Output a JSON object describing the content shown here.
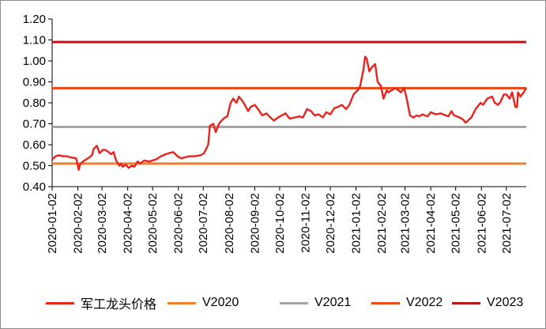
{
  "chart_data": {
    "type": "line",
    "title": "",
    "xlabel": "",
    "ylabel": "",
    "ylim": [
      0.4,
      1.2
    ],
    "y_ticks": [
      "0.40",
      "0.50",
      "0.60",
      "0.70",
      "0.80",
      "0.90",
      "1.00",
      "1.10",
      "1.20"
    ],
    "x_ticks": [
      "2020-01-02",
      "2020-02-02",
      "2020-03-02",
      "2020-04-02",
      "2020-05-02",
      "2020-06-02",
      "2020-07-02",
      "2020-08-02",
      "2020-09-02",
      "2020-10-02",
      "2020-11-02",
      "2020-12-02",
      "2021-01-02",
      "2021-02-02",
      "2021-03-02",
      "2021-04-02",
      "2021-05-02",
      "2021-06-02",
      "2021-07-02"
    ],
    "x_range": [
      "2020-01-02",
      "2021-07-26"
    ],
    "grid": false,
    "legend_position": "bottom",
    "series": [
      {
        "name": "军工龙头价格",
        "color": "#e8231e",
        "points": [
          [
            "2020-01-02",
            0.53
          ],
          [
            "2020-01-06",
            0.545
          ],
          [
            "2020-01-10",
            0.55
          ],
          [
            "2020-01-15",
            0.545
          ],
          [
            "2020-01-20",
            0.545
          ],
          [
            "2020-01-24",
            0.54
          ],
          [
            "2020-01-31",
            0.535
          ],
          [
            "2020-02-03",
            0.48
          ],
          [
            "2020-02-05",
            0.51
          ],
          [
            "2020-02-10",
            0.525
          ],
          [
            "2020-02-14",
            0.535
          ],
          [
            "2020-02-19",
            0.55
          ],
          [
            "2020-02-21",
            0.58
          ],
          [
            "2020-02-25",
            0.595
          ],
          [
            "2020-02-28",
            0.56
          ],
          [
            "2020-03-03",
            0.575
          ],
          [
            "2020-03-06",
            0.575
          ],
          [
            "2020-03-10",
            0.565
          ],
          [
            "2020-03-13",
            0.555
          ],
          [
            "2020-03-16",
            0.565
          ],
          [
            "2020-03-19",
            0.525
          ],
          [
            "2020-03-23",
            0.5
          ],
          [
            "2020-03-25",
            0.51
          ],
          [
            "2020-03-27",
            0.495
          ],
          [
            "2020-03-31",
            0.505
          ],
          [
            "2020-04-03",
            0.49
          ],
          [
            "2020-04-07",
            0.5
          ],
          [
            "2020-04-10",
            0.495
          ],
          [
            "2020-04-14",
            0.52
          ],
          [
            "2020-04-17",
            0.51
          ],
          [
            "2020-04-22",
            0.525
          ],
          [
            "2020-04-28",
            0.52
          ],
          [
            "2020-05-06",
            0.53
          ],
          [
            "2020-05-12",
            0.545
          ],
          [
            "2020-05-18",
            0.555
          ],
          [
            "2020-05-22",
            0.56
          ],
          [
            "2020-05-27",
            0.565
          ],
          [
            "2020-06-01",
            0.545
          ],
          [
            "2020-06-05",
            0.535
          ],
          [
            "2020-06-10",
            0.54
          ],
          [
            "2020-06-15",
            0.545
          ],
          [
            "2020-06-22",
            0.545
          ],
          [
            "2020-06-29",
            0.55
          ],
          [
            "2020-07-03",
            0.56
          ],
          [
            "2020-07-08",
            0.6
          ],
          [
            "2020-07-10",
            0.69
          ],
          [
            "2020-07-14",
            0.7
          ],
          [
            "2020-07-17",
            0.66
          ],
          [
            "2020-07-21",
            0.7
          ],
          [
            "2020-07-24",
            0.715
          ],
          [
            "2020-07-28",
            0.73
          ],
          [
            "2020-07-31",
            0.735
          ],
          [
            "2020-08-04",
            0.8
          ],
          [
            "2020-08-07",
            0.82
          ],
          [
            "2020-08-11",
            0.8
          ],
          [
            "2020-08-14",
            0.83
          ],
          [
            "2020-08-18",
            0.81
          ],
          [
            "2020-08-21",
            0.79
          ],
          [
            "2020-08-25",
            0.76
          ],
          [
            "2020-08-28",
            0.78
          ],
          [
            "2020-09-02",
            0.79
          ],
          [
            "2020-09-07",
            0.765
          ],
          [
            "2020-09-11",
            0.74
          ],
          [
            "2020-09-16",
            0.75
          ],
          [
            "2020-09-21",
            0.73
          ],
          [
            "2020-09-25",
            0.715
          ],
          [
            "2020-09-30",
            0.73
          ],
          [
            "2020-10-09",
            0.75
          ],
          [
            "2020-10-14",
            0.725
          ],
          [
            "2020-10-20",
            0.73
          ],
          [
            "2020-10-26",
            0.735
          ],
          [
            "2020-10-30",
            0.73
          ],
          [
            "2020-11-04",
            0.77
          ],
          [
            "2020-11-09",
            0.76
          ],
          [
            "2020-11-13",
            0.74
          ],
          [
            "2020-11-18",
            0.745
          ],
          [
            "2020-11-23",
            0.73
          ],
          [
            "2020-11-27",
            0.755
          ],
          [
            "2020-12-02",
            0.745
          ],
          [
            "2020-12-07",
            0.775
          ],
          [
            "2020-12-11",
            0.78
          ],
          [
            "2020-12-16",
            0.79
          ],
          [
            "2020-12-21",
            0.77
          ],
          [
            "2020-12-25",
            0.79
          ],
          [
            "2020-12-30",
            0.84
          ],
          [
            "2021-01-04",
            0.86
          ],
          [
            "2021-01-07",
            0.88
          ],
          [
            "2021-01-11",
            0.96
          ],
          [
            "2021-01-13",
            1.02
          ],
          [
            "2021-01-15",
            1.01
          ],
          [
            "2021-01-18",
            0.95
          ],
          [
            "2021-01-21",
            0.97
          ],
          [
            "2021-01-25",
            0.985
          ],
          [
            "2021-01-28",
            0.9
          ],
          [
            "2021-02-01",
            0.88
          ],
          [
            "2021-02-04",
            0.82
          ],
          [
            "2021-02-08",
            0.86
          ],
          [
            "2021-02-10",
            0.85
          ],
          [
            "2021-02-18",
            0.87
          ],
          [
            "2021-02-22",
            0.86
          ],
          [
            "2021-02-25",
            0.85
          ],
          [
            "2021-03-01",
            0.87
          ],
          [
            "2021-03-04",
            0.82
          ],
          [
            "2021-03-08",
            0.74
          ],
          [
            "2021-03-12",
            0.73
          ],
          [
            "2021-03-16",
            0.74
          ],
          [
            "2021-03-19",
            0.735
          ],
          [
            "2021-03-23",
            0.745
          ],
          [
            "2021-03-29",
            0.735
          ],
          [
            "2021-04-02",
            0.755
          ],
          [
            "2021-04-08",
            0.745
          ],
          [
            "2021-04-14",
            0.75
          ],
          [
            "2021-04-20",
            0.74
          ],
          [
            "2021-04-23",
            0.735
          ],
          [
            "2021-04-27",
            0.76
          ],
          [
            "2021-04-30",
            0.74
          ],
          [
            "2021-05-07",
            0.73
          ],
          [
            "2021-05-11",
            0.72
          ],
          [
            "2021-05-14",
            0.705
          ],
          [
            "2021-05-18",
            0.72
          ],
          [
            "2021-05-21",
            0.73
          ],
          [
            "2021-05-26",
            0.77
          ],
          [
            "2021-06-01",
            0.8
          ],
          [
            "2021-06-04",
            0.79
          ],
          [
            "2021-06-09",
            0.82
          ],
          [
            "2021-06-15",
            0.83
          ],
          [
            "2021-06-18",
            0.8
          ],
          [
            "2021-06-22",
            0.79
          ],
          [
            "2021-06-25",
            0.805
          ],
          [
            "2021-06-29",
            0.84
          ],
          [
            "2021-07-02",
            0.84
          ],
          [
            "2021-07-06",
            0.82
          ],
          [
            "2021-07-09",
            0.85
          ],
          [
            "2021-07-13",
            0.78
          ],
          [
            "2021-07-15",
            0.78
          ],
          [
            "2021-07-16",
            0.85
          ],
          [
            "2021-07-19",
            0.83
          ],
          [
            "2021-07-21",
            0.84
          ],
          [
            "2021-07-23",
            0.85
          ],
          [
            "2021-07-26",
            0.87
          ]
        ]
      },
      {
        "name": "V2020",
        "color": "#f27e27",
        "constant": 0.51
      },
      {
        "name": "V2021",
        "color": "#a3a3a3",
        "constant": 0.685
      },
      {
        "name": "V2022",
        "color": "#ef4a1a",
        "constant": 0.87
      },
      {
        "name": "V2023",
        "color": "#c0131a",
        "constant": 1.09
      }
    ]
  }
}
